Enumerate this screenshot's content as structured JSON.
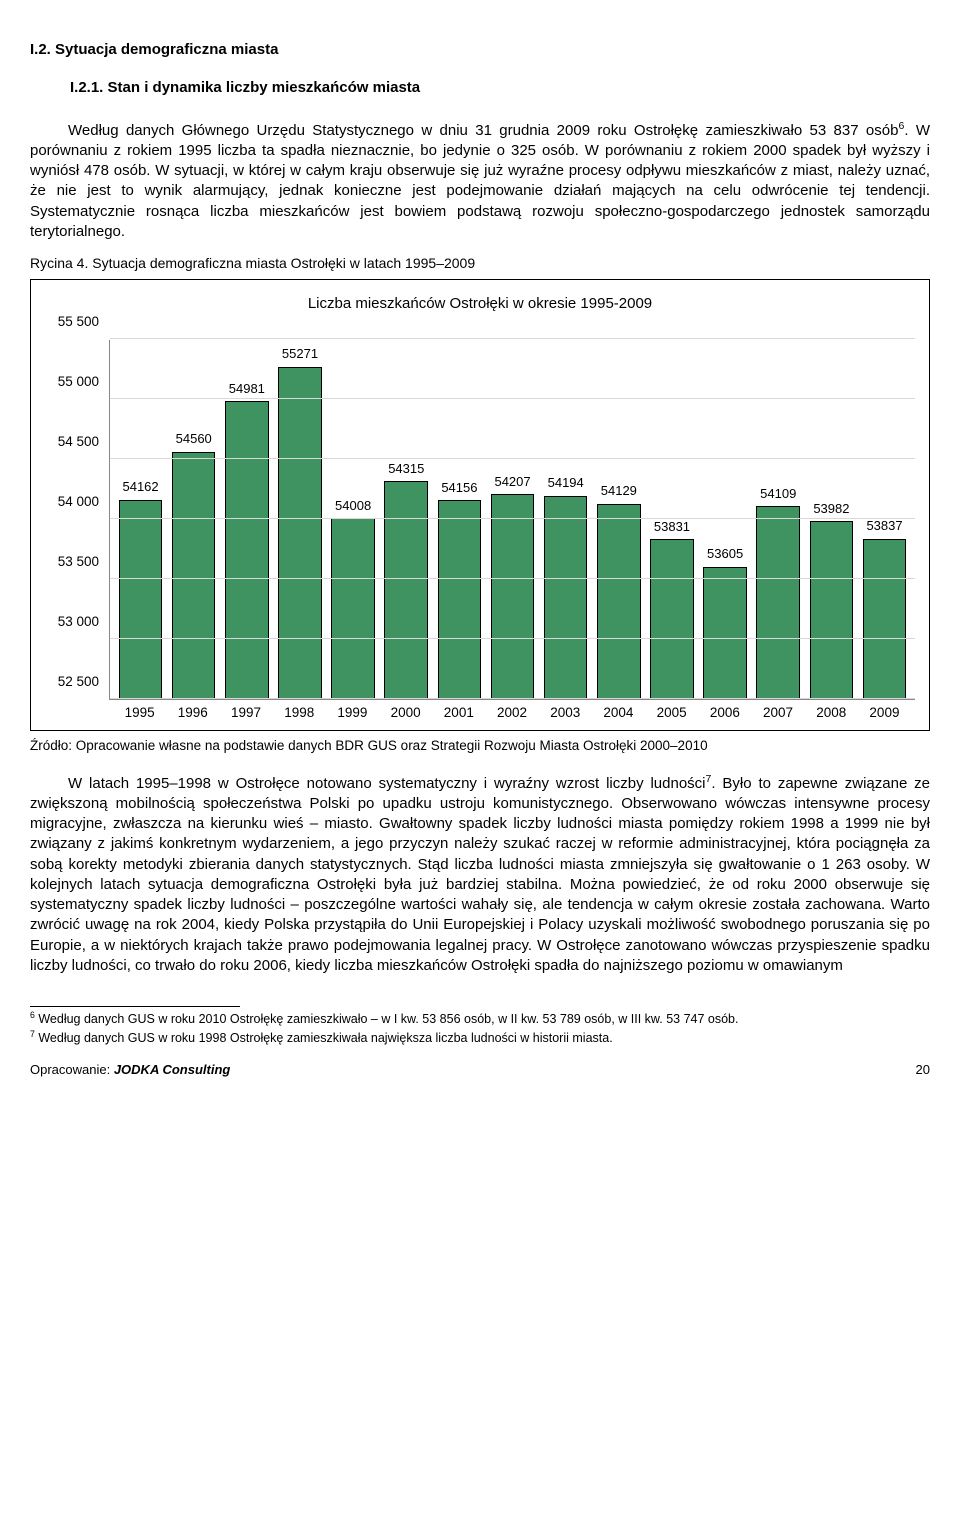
{
  "heading1": "I.2.  Sytuacja demograficzna miasta",
  "heading2": "I.2.1.    Stan i dynamika liczby mieszkańców miasta",
  "para1_html": "Według danych Głównego Urzędu Statystycznego w dniu 31 grudnia 2009 roku Ostrołękę zamieszkiwało 53 837 osób<sup>6</sup>. W porównaniu z rokiem 1995 liczba ta spadła nieznacznie, bo jedynie o 325 osób. W porównaniu z rokiem 2000 spadek był wyższy i wyniósł 478 osób. W sytuacji, w której w całym kraju obserwuje się już wyraźne procesy odpływu mieszkańców z miast, należy uznać, że nie jest to wynik alarmujący, jednak konieczne jest podejmowanie działań mających na celu odwrócenie tej tendencji. Systematycznie rosnąca liczba mieszkańców jest bowiem podstawą rozwoju społeczno-gospodarczego jednostek samorządu terytorialnego.",
  "rycinaLabel": "Rycina 4. Sytuacja demograficzna miasta Ostrołęki w latach 1995–2009",
  "chart": {
    "title": "Liczba mieszkańców Ostrołęki w okresie 1995-2009",
    "ymin": 52500,
    "ymax": 55500,
    "ystep": 500,
    "bar_fill": "#3f9361",
    "years": [
      "1995",
      "1996",
      "1997",
      "1998",
      "1999",
      "2000",
      "2001",
      "2002",
      "2003",
      "2004",
      "2005",
      "2006",
      "2007",
      "2008",
      "2009"
    ],
    "values": [
      54162,
      54560,
      54981,
      55271,
      54008,
      54315,
      54156,
      54207,
      54194,
      54129,
      53831,
      53605,
      54109,
      53982,
      53837
    ]
  },
  "source": "Źródło: Opracowanie własne na podstawie danych BDR GUS oraz Strategii Rozwoju Miasta Ostrołęki 2000–2010",
  "para2_html": "W latach 1995–1998 w Ostrołęce notowano systematyczny i wyraźny wzrost liczby ludności<sup>7</sup>. Było to zapewne związane ze zwiększoną mobilnością społeczeństwa Polski po upadku ustroju komunistycznego. Obserwowano wówczas intensywne procesy migracyjne, zwłaszcza na kierunku wieś – miasto. Gwałtowny spadek liczby ludności miasta pomiędzy rokiem 1998 a 1999 nie był związany z jakimś konkretnym wydarzeniem, a jego przyczyn należy szukać raczej w reformie administracyjnej, która pociągnęła za sobą korekty metodyki zbierania danych statystycznych. Stąd liczba ludności miasta zmniejszyła się gwałtowanie o 1 263 osoby. W kolejnych latach sytuacja demograficzna Ostrołęki była już bardziej stabilna. Można powiedzieć, że od roku 2000 obserwuje się systematyczny spadek liczby ludności – poszczególne wartości wahały się, ale tendencja w całym okresie została zachowana. Warto zwrócić uwagę na rok 2004, kiedy Polska przystąpiła do Unii Europejskiej i Polacy uzyskali możliwość swobodnego poruszania się po Europie, a w niektórych krajach także prawo podejmowania legalnej pracy. W Ostrołęce zanotowano wówczas przyspieszenie spadku liczby ludności, co trwało do roku 2006, kiedy liczba mieszkańców Ostrołęki spadła do najniższego poziomu w omawianym",
  "fn6_html": "<sup>6</sup> Według danych GUS w roku 2010 Ostrołękę zamieszkiwało – w I kw. 53 856 osób, w II kw. 53 789 osób, w III kw. 53 747 osób.",
  "fn7_html": "<sup>7</sup> Według danych GUS w roku 1998 Ostrołękę zamieszkiwała największa liczba ludności w historii miasta.",
  "footerLeft_html": "Opracowanie: <i>JODKA Consulting</i>",
  "footerRight": "20"
}
